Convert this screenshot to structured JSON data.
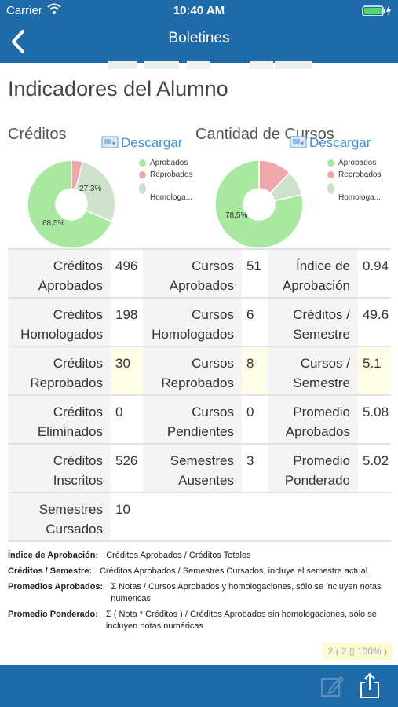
{
  "status": {
    "carrier": "Carrier",
    "time": "10:40 AM"
  },
  "nav": {
    "title": "Boletines"
  },
  "page": {
    "title": "Indicadores del Alumno"
  },
  "creditos": {
    "title": "Créditos",
    "download": "Descargar",
    "legend": [
      "Aprobados",
      "Reprobados",
      "Homologa..."
    ],
    "labels": [
      "68,5%",
      "27,3%"
    ]
  },
  "cursos": {
    "title": "Cantidad de Cursos",
    "download": "Descargar",
    "legend": [
      "Aprobados",
      "Reprobados",
      "Homologa..."
    ],
    "labels": [
      "78,5%"
    ]
  },
  "chart_data": [
    {
      "type": "pie",
      "title": "Créditos",
      "categories": [
        "Aprobados",
        "Reprobados",
        "Homologados"
      ],
      "values": [
        68.5,
        4.2,
        27.3
      ],
      "colors": [
        "#a8e8a0",
        "#f0a7aa",
        "#cfe2cc"
      ]
    },
    {
      "type": "pie",
      "title": "Cantidad de Cursos",
      "categories": [
        "Aprobados",
        "Reprobados",
        "Homologados"
      ],
      "values": [
        78.5,
        12.3,
        9.2
      ],
      "colors": [
        "#a8e8a0",
        "#f0a7aa",
        "#cfe2cc"
      ]
    }
  ],
  "stats": {
    "r1": {
      "l1": "Créditos Aprobados",
      "v1": "496",
      "l2": "Cursos Aprobados",
      "v2": "51",
      "l3": "Índice de Aprobación",
      "v3": "0.94"
    },
    "r2": {
      "l1": "Créditos Homologados",
      "v1": "198",
      "l2": "Cursos Homologados",
      "v2": "6",
      "l3": "Créditos / Semestre",
      "v3": "49.6"
    },
    "r3": {
      "l1": "Créditos Reprobados",
      "v1": "30",
      "l2": "Cursos Reprobados",
      "v2": "8",
      "l3": "Cursos / Semestre",
      "v3": "5.1"
    },
    "r4": {
      "l1": "Créditos Eliminados",
      "v1": "0",
      "l2": "Cursos Pendientes",
      "v2": "0",
      "l3": "Promedio Aprobados",
      "v3": "5.08"
    },
    "r5": {
      "l1": "Créditos Inscritos",
      "v1": "526",
      "l2": "Semestres Ausentes",
      "v2": "3",
      "l3": "Promedio Ponderado",
      "v3": "5.02"
    },
    "r6": {
      "l1": "Semestres Cursados",
      "v1": "10"
    }
  },
  "notes": [
    {
      "k": "Índice de Aprobación:",
      "v": "Créditos Aprobados / Créditos Totales"
    },
    {
      "k": "Créditos / Semestre:",
      "v": "Créditos Aprobados / Semestres Cursados, incluye el semestre actual"
    },
    {
      "k": "Promedios Aprobados:",
      "v": "Σ Notas / Cursos Aprobados y homologaciones, sólo se incluyen notas numéricas"
    },
    {
      "k": "Promedio Ponderado:",
      "v": "Σ ( Nota * Créditos ) / Créditos Aprobados sin homologaciones, sólo se incluyen notas numéricas"
    }
  ],
  "zoom": "2 ( 2 ▯ 100% )",
  "colors": {
    "accent": "#1f6aa8",
    "link": "#3f8fd6"
  },
  "icons": {
    "back": "chevron-left-icon",
    "edit": "compose-icon",
    "share": "share-icon",
    "download": "download-icon"
  }
}
